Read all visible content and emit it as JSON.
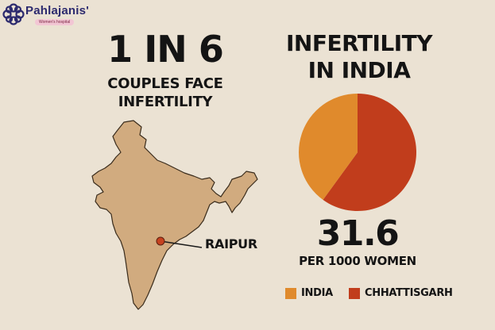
{
  "logo": {
    "name": "Pahlajanis'",
    "subtitle": "Women's hospital",
    "icon": "knot-logo-icon"
  },
  "headline": {
    "stat": "1 IN 6",
    "caption_line1": "COUPLES FACE",
    "caption_line2": "INFERTILITY"
  },
  "map": {
    "city": "RAIPUR",
    "map_color": "#d1ab7f",
    "marker_color": "#c6421f"
  },
  "chart_data": {
    "type": "pie",
    "title_line1": "INFERTILITY",
    "title_line2": "IN INDIA",
    "categories": [
      "INDIA",
      "CHHATTISGARH"
    ],
    "values": [
      40,
      60
    ],
    "colors": [
      "#e08a2c",
      "#c13d1c"
    ],
    "value_label": "31.6",
    "value_unit": "PER 1000 WOMEN",
    "legend_position": "bottom"
  }
}
